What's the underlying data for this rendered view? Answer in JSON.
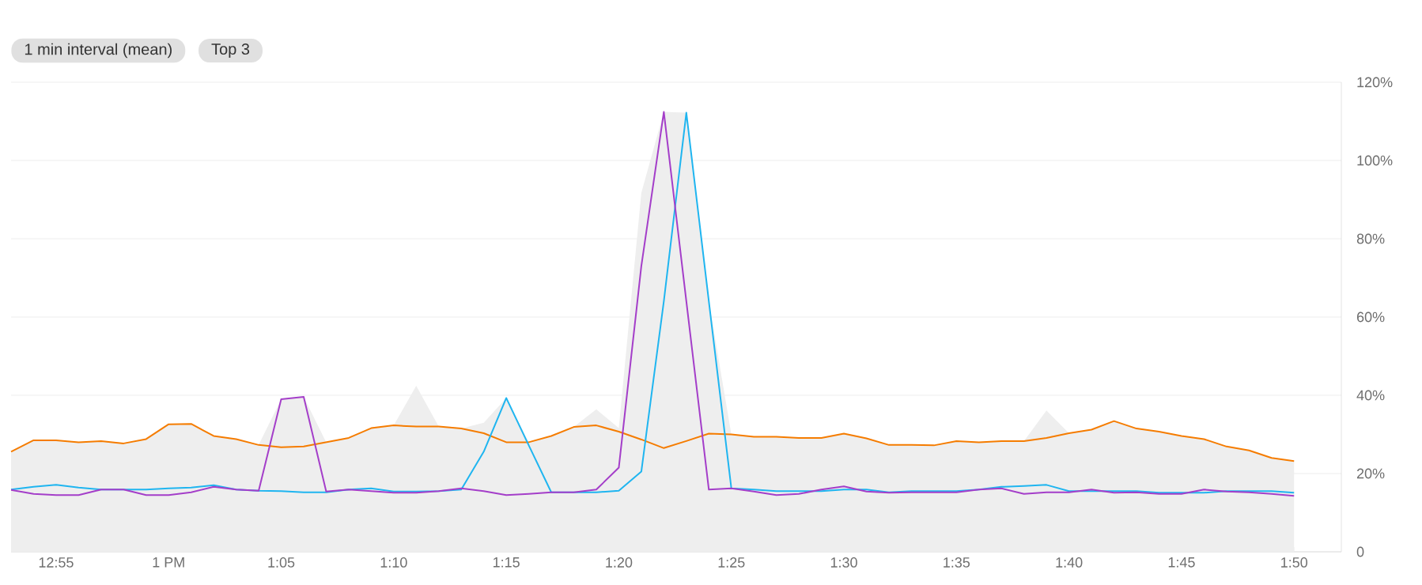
{
  "chart_data": {
    "type": "line",
    "annotations": [
      "1 min interval (mean)",
      "Top 3"
    ],
    "categories": [
      null,
      null,
      "12:55",
      null,
      null,
      null,
      null,
      "1 PM",
      null,
      null,
      null,
      null,
      "1:05",
      null,
      null,
      null,
      null,
      "1:10",
      null,
      null,
      null,
      null,
      "1:15",
      null,
      null,
      null,
      null,
      "1:20",
      null,
      null,
      null,
      null,
      "1:25",
      null,
      null,
      null,
      null,
      "1:30",
      null,
      null,
      null,
      null,
      "1:35",
      null,
      null,
      null,
      null,
      "1:40",
      null,
      null,
      null,
      null,
      "1:45",
      null,
      null,
      null,
      null,
      "1:50"
    ],
    "series": [
      {
        "type": "area",
        "color": "#eeeeee",
        "values": [
          25.6,
          28.5,
          28.5,
          28,
          28.3,
          27.7,
          28.8,
          32.6,
          32.7,
          29.6,
          28.8,
          27.3,
          39,
          39.6,
          28,
          29.1,
          31.6,
          32.3,
          42.4,
          32,
          31.5,
          33,
          39.3,
          28,
          29.6,
          31.9,
          36.4,
          31.6,
          91.7,
          112.4,
          112.2,
          64,
          30,
          29.4,
          29.4,
          29.1,
          29.1,
          30.2,
          29,
          27.3,
          27.3,
          27.2,
          28.3,
          28,
          28.3,
          28.3,
          36.1,
          30.3,
          31.2,
          33.4,
          31.5,
          30.7,
          29.6,
          28.8,
          26.9,
          25.9,
          24,
          23.2
        ]
      },
      {
        "color": "#f57c00",
        "values": [
          25.6,
          28.5,
          28.5,
          28,
          28.3,
          27.7,
          28.8,
          32.6,
          32.7,
          29.6,
          28.8,
          27.3,
          26.7,
          26.9,
          28,
          29.1,
          31.6,
          32.3,
          32,
          32,
          31.5,
          30.3,
          28,
          28,
          29.6,
          31.9,
          32.3,
          30.7,
          28.7,
          26.5,
          28.3,
          30.2,
          30,
          29.4,
          29.4,
          29.1,
          29.1,
          30.2,
          29,
          27.3,
          27.3,
          27.2,
          28.3,
          28,
          28.3,
          28.3,
          29.1,
          30.3,
          31.2,
          33.4,
          31.5,
          30.7,
          29.6,
          28.8,
          26.9,
          25.9,
          24,
          23.2
        ]
      },
      {
        "color": "#1fb5f0",
        "values": [
          15.9,
          16.6,
          17.1,
          16.4,
          15.9,
          15.9,
          15.9,
          16.2,
          16.4,
          17,
          15.9,
          15.6,
          15.5,
          15.2,
          15.2,
          15.9,
          16.2,
          15.4,
          15.4,
          15.5,
          15.9,
          25.6,
          39.3,
          27.2,
          15.2,
          15.2,
          15.2,
          15.6,
          20.5,
          64,
          112.2,
          64,
          16.2,
          15.9,
          15.5,
          15.5,
          15.5,
          15.9,
          15.9,
          15.2,
          15.5,
          15.5,
          15.5,
          15.9,
          16.6,
          16.8,
          17.1,
          15.5,
          15.5,
          15.5,
          15.5,
          15.1,
          15.1,
          15.1,
          15.5,
          15.5,
          15.5,
          15.1
        ]
      },
      {
        "color": "#a43ec9",
        "values": [
          15.8,
          14.8,
          14.5,
          14.5,
          15.9,
          15.9,
          14.5,
          14.5,
          15.2,
          16.6,
          15.9,
          15.6,
          39,
          39.6,
          15.4,
          15.9,
          15.5,
          15.1,
          15.1,
          15.5,
          16.2,
          15.5,
          14.5,
          14.8,
          15.2,
          15.2,
          15.9,
          21.5,
          73,
          112.4,
          64,
          15.9,
          16.2,
          15.4,
          14.5,
          14.8,
          15.9,
          16.7,
          15.4,
          15.1,
          15.2,
          15.2,
          15.2,
          15.9,
          16.2,
          14.8,
          15.2,
          15.2,
          15.9,
          15.1,
          15.2,
          14.8,
          14.8,
          15.9,
          15.4,
          15.2,
          14.8,
          14.3
        ]
      }
    ],
    "ylim": [
      0,
      120
    ],
    "yticks": [
      0,
      {
        "value": 20,
        "label": "20%"
      },
      {
        "value": 40,
        "label": "40%"
      },
      {
        "value": 60,
        "label": "60%"
      },
      {
        "value": 80,
        "label": "80%"
      },
      {
        "value": 100,
        "label": "100%"
      },
      {
        "value": 120,
        "label": "120%"
      }
    ],
    "grid": "y"
  }
}
